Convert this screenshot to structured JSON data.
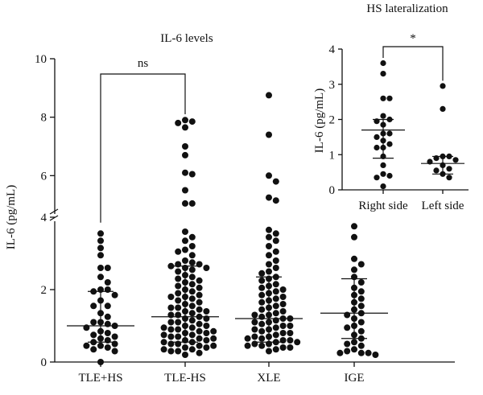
{
  "chart_data": [
    {
      "type": "scatter",
      "title": "IL-6 levels",
      "ylabel": "IL-6 (pg/mL)",
      "xlabel": "",
      "ylim_lower": [
        0,
        4
      ],
      "ylim_upper": [
        4,
        10
      ],
      "axis_break": true,
      "yticks": [
        0,
        2,
        4,
        6,
        8,
        10
      ],
      "categories": [
        "TLE+HS",
        "TLE-HS",
        "XLE",
        "IGE"
      ],
      "summary": [
        {
          "center": 1.0,
          "low": 0.55,
          "high": 1.95
        },
        {
          "center": 1.25,
          "low": 0.55,
          "high": 2.65
        },
        {
          "center": 1.2,
          "low": 0.55,
          "high": 2.35
        },
        {
          "center": 1.35,
          "low": 0.65,
          "high": 2.3
        }
      ],
      "comparisons": [
        {
          "from": "TLE+HS",
          "to": "TLE-HS",
          "label": "ns",
          "level": 9.7
        }
      ],
      "groups": [
        {
          "name": "TLE+HS",
          "values": [
            3.55,
            3.35,
            3.15,
            2.95,
            2.6,
            2.6,
            2.35,
            2.2,
            2.0,
            2.0,
            1.95,
            1.85,
            1.7,
            1.55,
            1.55,
            1.35,
            1.25,
            1.1,
            1.1,
            1.05,
            1.0,
            0.95,
            0.85,
            0.8,
            0.75,
            0.7,
            0.65,
            0.6,
            0.55,
            0.5,
            0.45,
            0.45,
            0.4,
            0.35,
            0.3,
            0.0
          ]
        },
        {
          "name": "TLE-HS",
          "values": [
            7.9,
            7.85,
            7.8,
            7.65,
            7.0,
            6.7,
            6.1,
            6.05,
            5.5,
            5.05,
            5.05,
            3.6,
            3.45,
            3.35,
            3.2,
            3.1,
            3.05,
            2.95,
            2.8,
            2.75,
            2.7,
            2.7,
            2.65,
            2.6,
            2.6,
            2.55,
            2.5,
            2.4,
            2.35,
            2.3,
            2.25,
            2.2,
            2.15,
            2.1,
            2.05,
            2.0,
            1.95,
            1.9,
            1.85,
            1.8,
            1.8,
            1.75,
            1.7,
            1.65,
            1.6,
            1.55,
            1.5,
            1.5,
            1.45,
            1.4,
            1.4,
            1.35,
            1.3,
            1.3,
            1.25,
            1.2,
            1.2,
            1.15,
            1.1,
            1.1,
            1.05,
            1.0,
            1.0,
            0.95,
            0.95,
            0.9,
            0.9,
            0.85,
            0.85,
            0.8,
            0.8,
            0.75,
            0.75,
            0.7,
            0.7,
            0.65,
            0.65,
            0.6,
            0.6,
            0.55,
            0.55,
            0.5,
            0.5,
            0.45,
            0.45,
            0.4,
            0.4,
            0.35,
            0.35,
            0.3,
            0.3,
            0.25,
            0.2
          ]
        },
        {
          "name": "XLE",
          "values": [
            8.75,
            7.4,
            6.0,
            5.8,
            5.25,
            5.15,
            3.65,
            3.55,
            3.45,
            3.35,
            3.2,
            3.05,
            2.95,
            2.8,
            2.7,
            2.6,
            2.5,
            2.45,
            2.35,
            2.3,
            2.25,
            2.15,
            2.1,
            2.05,
            2.0,
            1.95,
            1.9,
            1.85,
            1.8,
            1.75,
            1.7,
            1.65,
            1.6,
            1.55,
            1.5,
            1.45,
            1.4,
            1.35,
            1.3,
            1.3,
            1.25,
            1.2,
            1.2,
            1.15,
            1.1,
            1.1,
            1.05,
            1.0,
            1.0,
            0.95,
            0.9,
            0.9,
            0.85,
            0.8,
            0.8,
            0.75,
            0.7,
            0.7,
            0.65,
            0.65,
            0.6,
            0.6,
            0.55,
            0.55,
            0.5,
            0.5,
            0.45,
            0.45,
            0.4,
            0.4,
            0.35,
            0.3
          ]
        },
        {
          "name": "IGE",
          "values": [
            3.75,
            3.45,
            2.85,
            2.7,
            2.55,
            2.35,
            2.2,
            2.05,
            1.95,
            1.85,
            1.75,
            1.65,
            1.55,
            1.45,
            1.35,
            1.3,
            1.2,
            1.1,
            1.0,
            0.95,
            0.85,
            0.75,
            0.65,
            0.55,
            0.5,
            0.45,
            0.35,
            0.3,
            0.25,
            0.25,
            0.25,
            0.2
          ]
        }
      ]
    },
    {
      "type": "scatter",
      "title": "HS lateralization",
      "ylabel": "IL-6 (pg/mL)",
      "xlabel": "",
      "ylim": [
        0,
        4
      ],
      "yticks": [
        0,
        1,
        2,
        3,
        4
      ],
      "categories": [
        "Right side",
        "Left side"
      ],
      "summary": [
        {
          "center": 1.7,
          "low": 0.9,
          "high": 2.0
        },
        {
          "center": 0.75,
          "low": 0.45,
          "high": 0.95
        }
      ],
      "comparisons": [
        {
          "from": "Right side",
          "to": "Left side",
          "label": "*",
          "level": 4.0
        }
      ],
      "groups": [
        {
          "name": "Right side",
          "values": [
            3.6,
            3.3,
            2.6,
            2.6,
            2.1,
            2.0,
            1.95,
            1.85,
            1.6,
            1.6,
            1.5,
            1.4,
            1.3,
            1.2,
            1.2,
            0.95,
            0.7,
            0.45,
            0.4,
            0.35,
            0.1
          ]
        },
        {
          "name": "Left side",
          "values": [
            2.95,
            2.3,
            0.95,
            0.95,
            0.9,
            0.85,
            0.8,
            0.7,
            0.6,
            0.55,
            0.45,
            0.35
          ]
        }
      ]
    }
  ]
}
